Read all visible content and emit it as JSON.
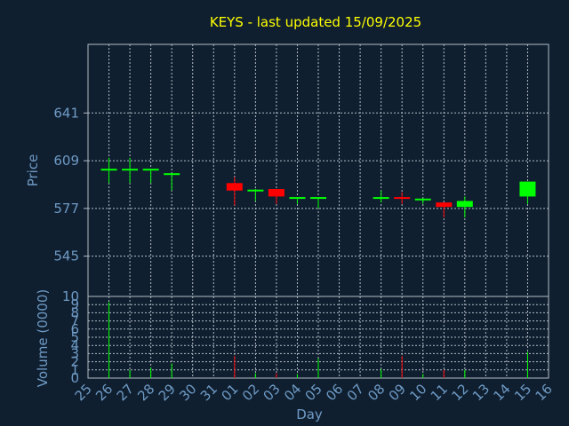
{
  "chart_data": {
    "type": "candlestick",
    "title": "KEYS - last updated 15/09/2025",
    "price_axis": {
      "label": "Price",
      "ylim": [
        518,
        687
      ],
      "ticks": [
        545,
        577,
        609,
        641
      ]
    },
    "volume_axis": {
      "label": "Volume (0000)",
      "ylim": [
        0,
        10
      ],
      "ticks": [
        0,
        1,
        2,
        3,
        4,
        5,
        6,
        7,
        8,
        9,
        10
      ]
    },
    "x_axis": {
      "label": "Day",
      "tick_labels": [
        "25",
        "26",
        "27",
        "28",
        "29",
        "30",
        "31",
        "01",
        "02",
        "03",
        "04",
        "05",
        "06",
        "07",
        "08",
        "09",
        "10",
        "11",
        "12",
        "13",
        "14",
        "15",
        "16"
      ]
    },
    "grid": true,
    "colors": {
      "up": "#00ff00",
      "down": "#ff0000",
      "title": "#ffff00",
      "axis_text": "#6f9ac4",
      "background": "#0f1f30",
      "frame": "#b4bcc4"
    },
    "candles": [
      {
        "day": "26",
        "open": 603,
        "high": 611,
        "low": 594,
        "close": 603,
        "volume": 9.3
      },
      {
        "day": "27",
        "open": 603,
        "high": 611,
        "low": 594,
        "close": 603,
        "volume": 1.0
      },
      {
        "day": "28",
        "open": 603,
        "high": 603,
        "low": 594,
        "close": 603,
        "volume": 1.3
      },
      {
        "day": "29",
        "open": 600,
        "high": 600,
        "low": 589,
        "close": 600,
        "volume": 1.8
      },
      {
        "day": "01",
        "open": 594,
        "high": 598,
        "low": 579,
        "close": 589,
        "volume": 2.7
      },
      {
        "day": "02",
        "open": 589,
        "high": 590,
        "low": 582,
        "close": 589,
        "volume": 0.6
      },
      {
        "day": "03",
        "open": 590,
        "high": 590,
        "low": 580,
        "close": 585,
        "volume": 0.6
      },
      {
        "day": "04",
        "open": 584,
        "high": 584,
        "low": 580,
        "close": 584,
        "volume": 0.5
      },
      {
        "day": "05",
        "open": 584,
        "high": 584,
        "low": 577,
        "close": 584,
        "volume": 2.4
      },
      {
        "day": "08",
        "open": 584,
        "high": 589,
        "low": 581,
        "close": 584,
        "volume": 1.1
      },
      {
        "day": "09",
        "open": 584,
        "high": 588,
        "low": 580,
        "close": 583,
        "volume": 2.7
      },
      {
        "day": "10",
        "open": 583,
        "high": 584,
        "low": 580,
        "close": 583,
        "volume": 0.5
      },
      {
        "day": "11",
        "open": 581,
        "high": 581,
        "low": 571,
        "close": 578,
        "volume": 1.0
      },
      {
        "day": "12",
        "open": 578,
        "high": 585,
        "low": 571,
        "close": 582,
        "volume": 1.0
      },
      {
        "day": "15",
        "open": 585,
        "high": 595,
        "low": 580,
        "close": 595,
        "volume": 3.2
      }
    ]
  }
}
